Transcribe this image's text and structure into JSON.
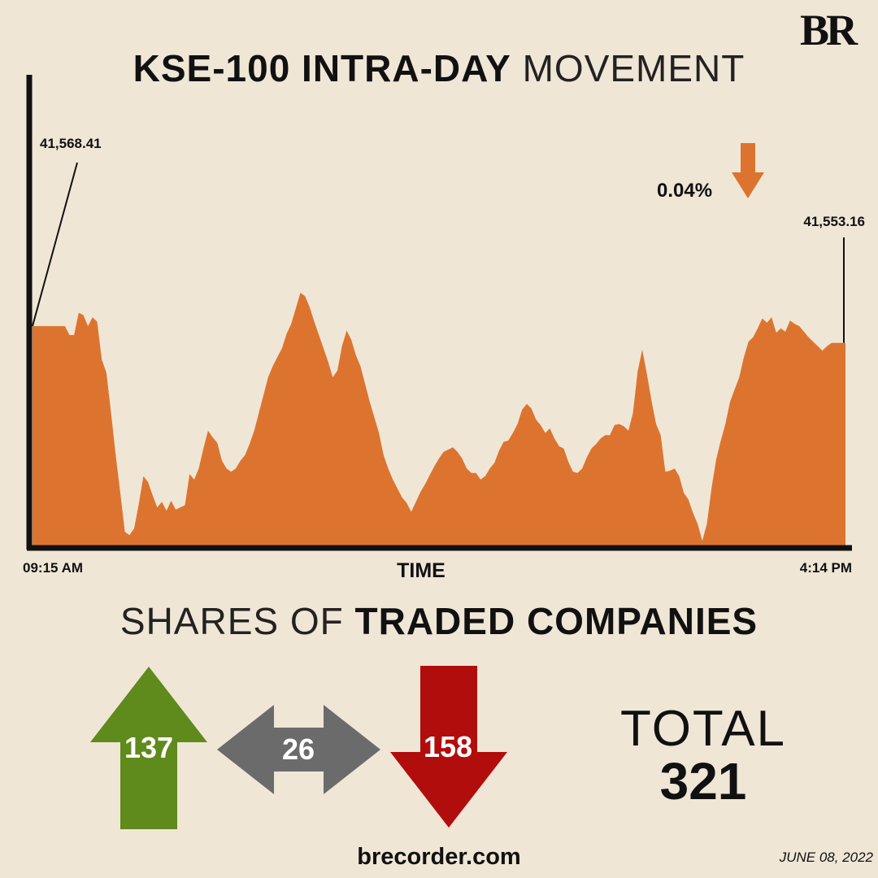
{
  "brand": {
    "logo_text": "BR"
  },
  "title": {
    "bold": "KSE-100 INTRA-DAY",
    "light": "MOVEMENT"
  },
  "chart_data": {
    "type": "area",
    "title": "KSE-100 INTRA-DAY MOVEMENT",
    "xlabel": "TIME",
    "ylabel": "",
    "x_start_label": "09:15 AM",
    "x_end_label": "4:14 PM",
    "open_value": "41,568.41",
    "close_value": "41,553.16",
    "change": {
      "label": "0.04%",
      "direction": "down"
    },
    "ylim": [
      41370,
      41620
    ],
    "series": [
      {
        "values": [
          41568,
          41568,
          41568,
          41568,
          41568,
          41568,
          41568,
          41568,
          41560,
          41560,
          41580,
          41578,
          41568,
          41576,
          41572,
          41538,
          41526,
          41490,
          41452,
          41418,
          41383,
          41380,
          41386,
          41408,
          41433,
          41428,
          41416,
          41405,
          41410,
          41402,
          41411,
          41403,
          41405,
          41407,
          41435,
          41430,
          41440,
          41458,
          41474,
          41468,
          41463,
          41447,
          41440,
          41437,
          41440,
          41447,
          41452,
          41462,
          41474,
          41490,
          41506,
          41522,
          41532,
          41540,
          41548,
          41561,
          41570,
          41584,
          41598,
          41595,
          41585,
          41572,
          41560,
          41548,
          41536,
          41522,
          41528,
          41550,
          41564,
          41556,
          41542,
          41532,
          41516,
          41500,
          41486,
          41472,
          41452,
          41440,
          41430,
          41422,
          41414,
          41409,
          41401,
          41410,
          41419,
          41426,
          41434,
          41442,
          41449,
          41455,
          41457,
          41459,
          41455,
          41449,
          41440,
          41436,
          41436,
          41430,
          41433,
          41440,
          41445,
          41456,
          41464,
          41465,
          41472,
          41480,
          41493,
          41498,
          41494,
          41484,
          41479,
          41472,
          41476,
          41467,
          41460,
          41458,
          41446,
          41437,
          41436,
          41440,
          41450,
          41458,
          41462,
          41467,
          41470,
          41470,
          41479,
          41480,
          41478,
          41474,
          41490,
          41527,
          41547,
          41525,
          41501,
          41480,
          41470,
          41437,
          41438,
          41440,
          41433,
          41418,
          41412,
          41400,
          41390,
          41375,
          41390,
          41422,
          41448,
          41465,
          41480,
          41500,
          41511,
          41522,
          41540,
          41554,
          41558,
          41566,
          41575,
          41571,
          41576,
          41562,
          41566,
          41563,
          41573,
          41570,
          41568,
          41563,
          41558,
          41554,
          41550,
          41546,
          41550,
          41553,
          41553,
          41553,
          41553
        ]
      }
    ]
  },
  "breadth": {
    "title_light": "SHARES OF",
    "title_bold": "TRADED COMPANIES",
    "advancers": {
      "value": "137",
      "color": "#5f8a1c"
    },
    "unchanged": {
      "value": "26",
      "color": "#6b6b6b"
    },
    "decliners": {
      "value": "158",
      "color": "#b10d0d"
    },
    "total_label": "TOTAL",
    "total_value": "321"
  },
  "colors": {
    "area": "#dc742f",
    "change_arrow": "#dc742f",
    "background": "#f0e6d6"
  },
  "footer": {
    "site": "brecorder.com",
    "date": "JUNE 08, 2022"
  }
}
